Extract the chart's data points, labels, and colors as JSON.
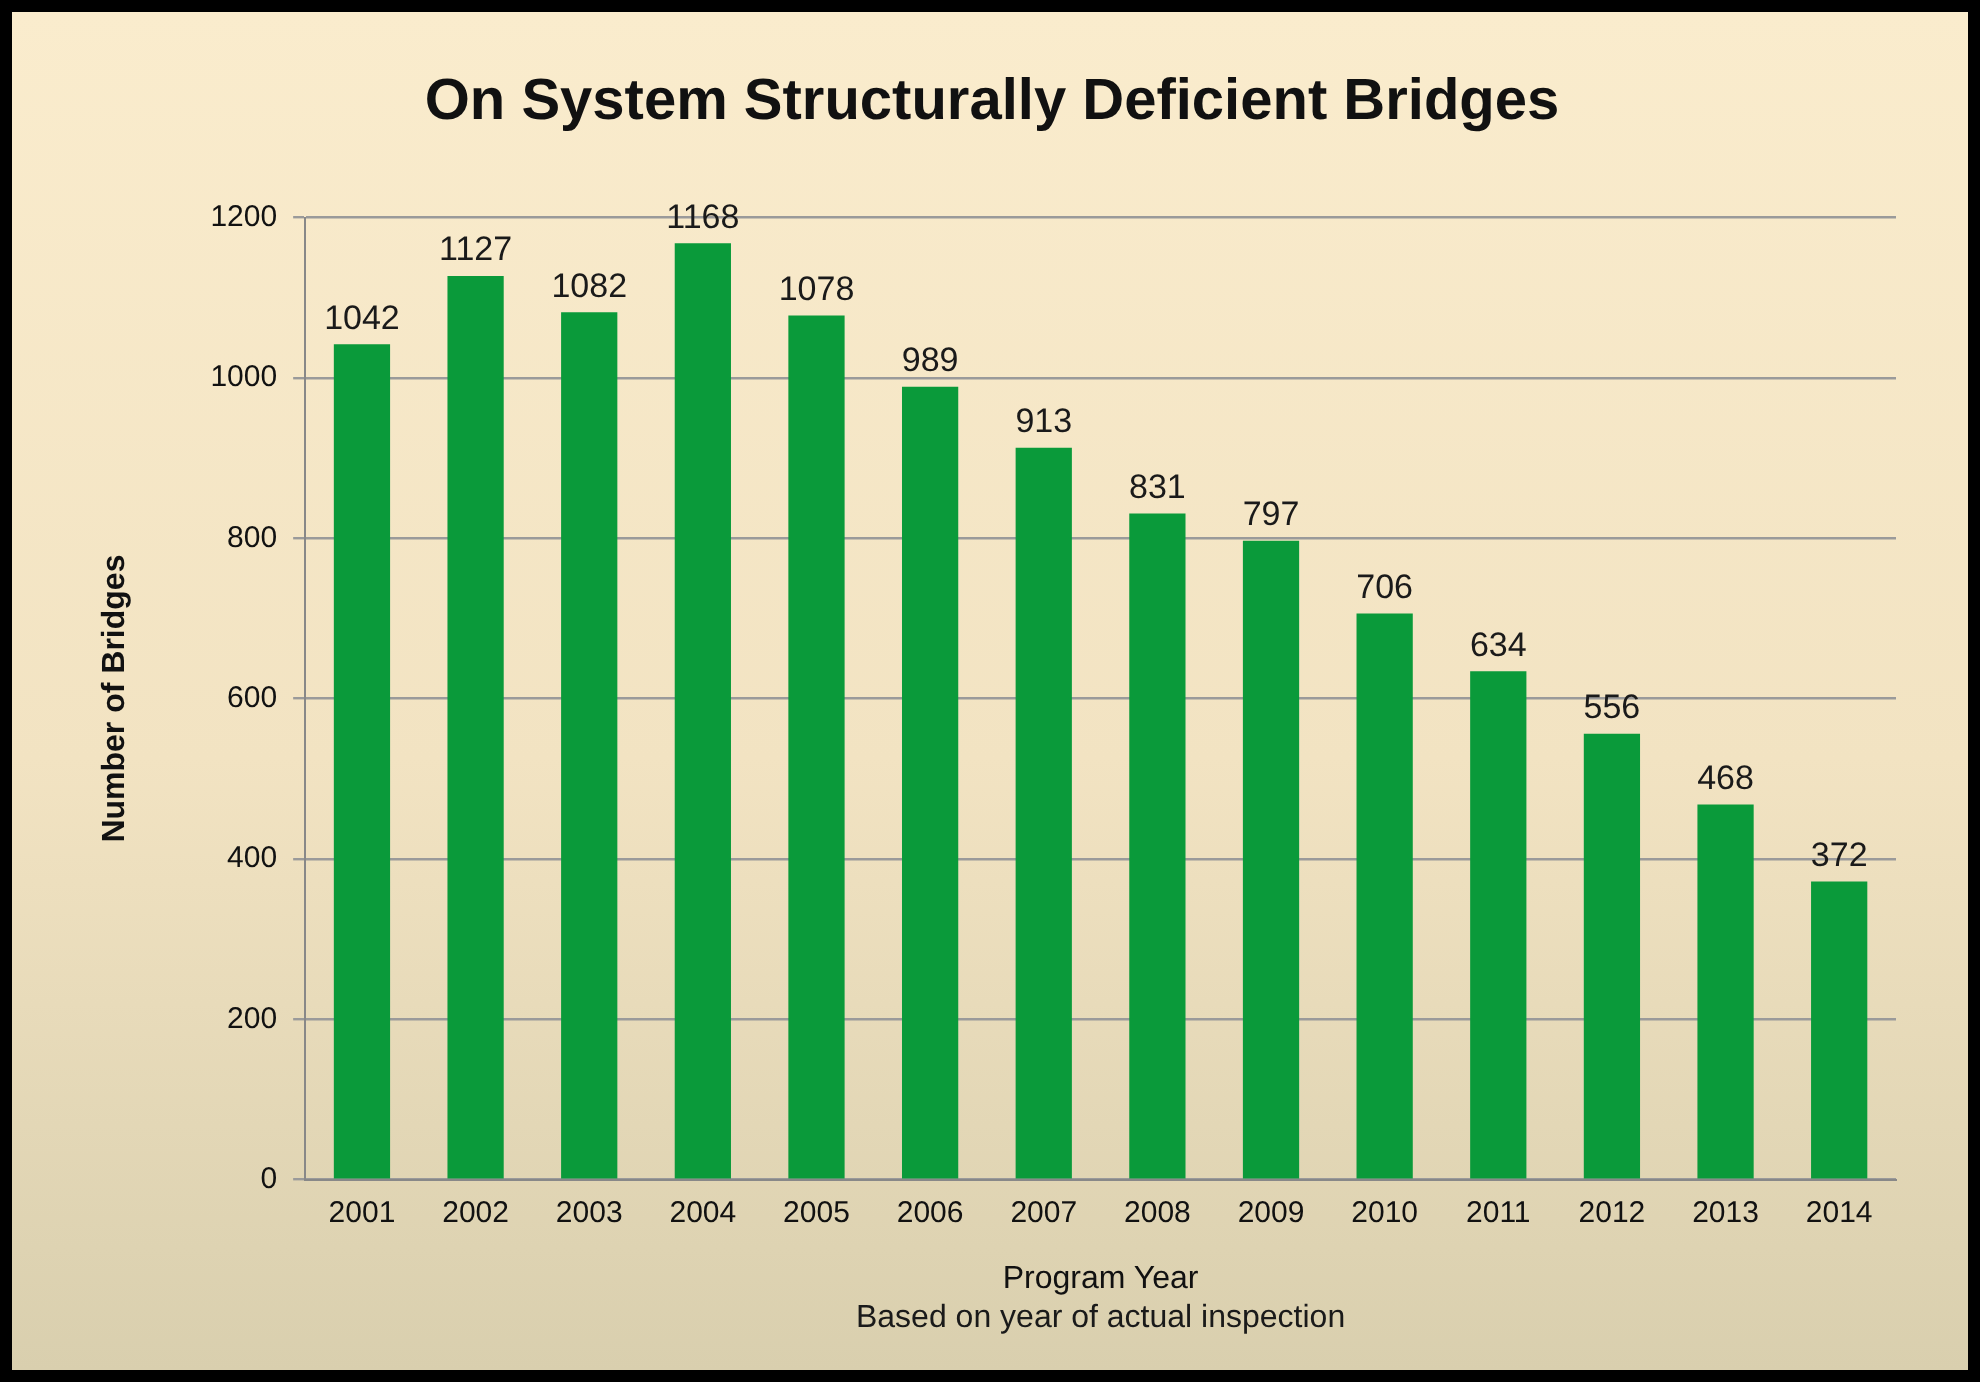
{
  "chart_data": {
    "type": "bar",
    "title": "On System Structurally Deficient Bridges",
    "xlabel": "Program Year",
    "ylabel": "Number of Bridges",
    "annotations": [
      "Based on year of actual inspection"
    ],
    "categories": [
      "2001",
      "2002",
      "2003",
      "2004",
      "2005",
      "2006",
      "2007",
      "2008",
      "2009",
      "2010",
      "2011",
      "2012",
      "2013",
      "2014"
    ],
    "values": [
      1042,
      1127,
      1082,
      1168,
      1078,
      989,
      913,
      831,
      797,
      706,
      634,
      556,
      468,
      372
    ],
    "color": "#0a9a3a",
    "ylim": [
      0,
      1200
    ],
    "yticks": [
      0,
      200,
      400,
      600,
      800,
      1000,
      1200
    ],
    "grid": "y",
    "data_labels": true
  }
}
